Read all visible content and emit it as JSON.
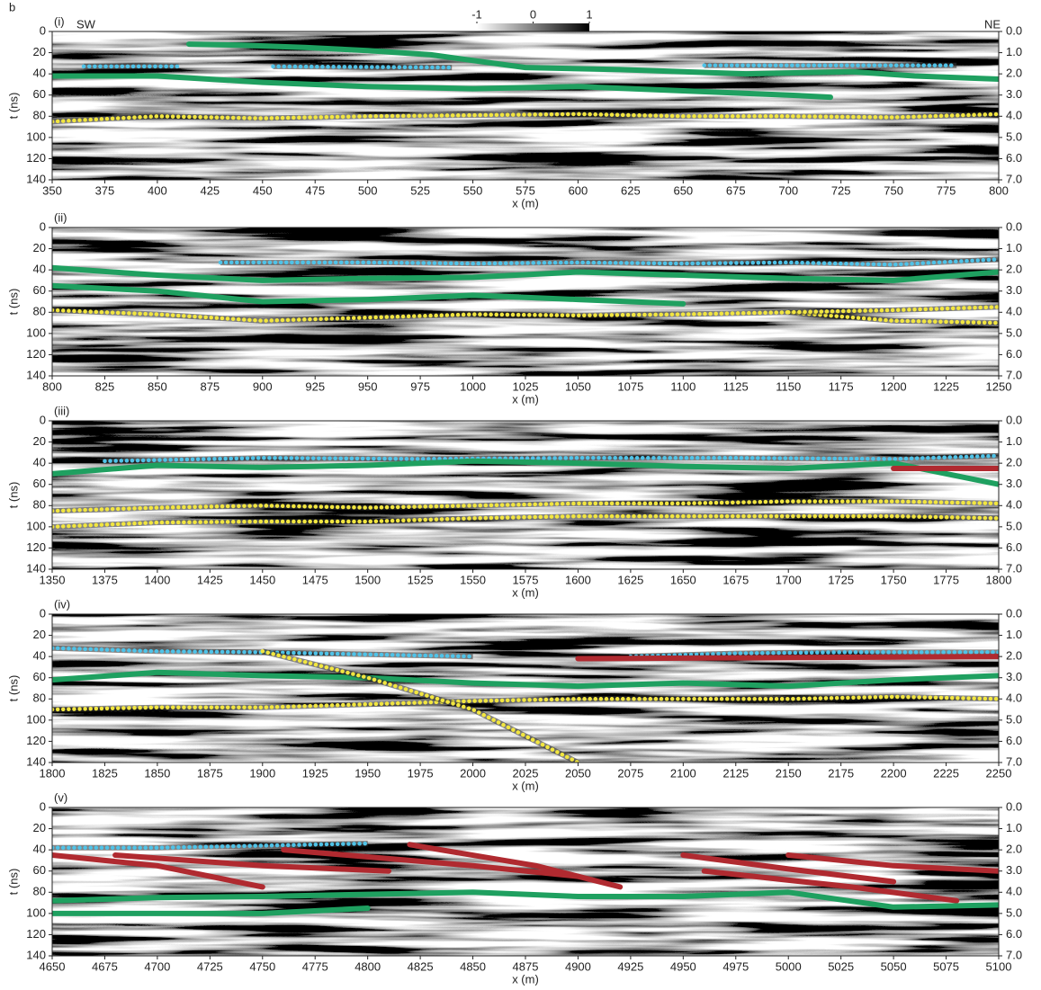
{
  "figure_label": "b",
  "colorbar": {
    "ticks": [
      -1,
      0,
      1
    ]
  },
  "direction_labels": [
    "SW",
    "NE"
  ],
  "chart_data": [
    {
      "type": "line",
      "title": "(i)",
      "x_label": "x (m)",
      "y_label": "t (ns)",
      "xlim": [
        350,
        800
      ],
      "xticks": [
        350,
        375,
        400,
        425,
        450,
        475,
        500,
        525,
        550,
        575,
        600,
        625,
        650,
        675,
        700,
        725,
        750,
        775,
        800
      ],
      "ylim": [
        140,
        0
      ],
      "yticks": [
        0,
        20,
        40,
        60,
        80,
        100,
        120,
        140
      ],
      "y2lim": [
        7,
        0
      ],
      "y2ticks": [
        {
          "value": 0,
          "label": "0.0"
        },
        {
          "value": 1,
          "label": "1.0"
        },
        {
          "value": 2,
          "label": "2.0"
        },
        {
          "value": 3,
          "label": "3.0"
        },
        {
          "value": 4,
          "label": "4.0"
        },
        {
          "value": 5,
          "label": "5.0"
        },
        {
          "value": 6,
          "label": "6.0"
        },
        {
          "value": 7,
          "label": "7.0"
        }
      ],
      "series": [
        {
          "color": "#1fa060",
          "style": "solid",
          "x": [
            415,
            440,
            470,
            500,
            530,
            575,
            620,
            680,
            730,
            760,
            800
          ],
          "values": [
            12,
            13,
            15,
            18,
            22,
            34,
            36,
            40,
            38,
            42,
            45
          ]
        },
        {
          "color": "#1fa060",
          "style": "solid",
          "x": [
            350,
            400,
            450,
            500,
            550,
            600,
            650,
            700,
            720
          ],
          "values": [
            42,
            42,
            48,
            52,
            54,
            52,
            56,
            60,
            62
          ]
        },
        {
          "color": "#4fc3e8",
          "style": "dotted",
          "x": [
            365,
            410,
            430,
            455,
            540,
            600,
            660,
            780
          ],
          "values": [
            33,
            33,
            null,
            33,
            34,
            null,
            32,
            32
          ]
        },
        {
          "color": "#f2e640",
          "style": "dotted",
          "x": [
            350,
            400,
            450,
            500,
            550,
            600,
            650,
            700,
            750,
            800
          ],
          "values": [
            85,
            80,
            82,
            80,
            79,
            78,
            80,
            80,
            81,
            78
          ]
        }
      ]
    },
    {
      "type": "line",
      "title": "(ii)",
      "x_label": "x (m)",
      "y_label": "t (ns)",
      "xlim": [
        800,
        1250
      ],
      "xticks": [
        800,
        825,
        850,
        875,
        900,
        925,
        950,
        975,
        1000,
        1025,
        1050,
        1075,
        1100,
        1125,
        1150,
        1175,
        1200,
        1225,
        1250
      ],
      "ylim": [
        140,
        0
      ],
      "yticks": [
        0,
        20,
        40,
        60,
        80,
        100,
        120,
        140
      ],
      "y2lim": [
        7,
        0
      ],
      "y2ticks": [
        {
          "value": 0,
          "label": "0.0"
        },
        {
          "value": 1,
          "label": "1.0"
        },
        {
          "value": 2,
          "label": "2.0"
        },
        {
          "value": 3,
          "label": "3.0"
        },
        {
          "value": 4,
          "label": "4.0"
        },
        {
          "value": 5,
          "label": "5.0"
        },
        {
          "value": 6,
          "label": "6.0"
        },
        {
          "value": 7,
          "label": "7.0"
        }
      ],
      "series": [
        {
          "color": "#4fc3e8",
          "style": "dotted",
          "x": [
            880,
            950,
            1000,
            1050,
            1100,
            1150,
            1200,
            1250
          ],
          "values": [
            33,
            33,
            34,
            33,
            34,
            33,
            35,
            30
          ]
        },
        {
          "color": "#1fa060",
          "style": "solid",
          "x": [
            800,
            850,
            900,
            950,
            1000,
            1050,
            1100,
            1150,
            1200,
            1250
          ],
          "values": [
            38,
            45,
            50,
            48,
            47,
            42,
            45,
            48,
            50,
            42
          ]
        },
        {
          "color": "#1fa060",
          "style": "solid",
          "x": [
            800,
            850,
            900,
            950,
            1000,
            1050,
            1100
          ],
          "values": [
            55,
            60,
            70,
            68,
            64,
            68,
            72
          ]
        },
        {
          "color": "#f2e640",
          "style": "dotted",
          "x": [
            800,
            850,
            900,
            950,
            1000,
            1050,
            1100,
            1150,
            1200,
            1250
          ],
          "values": [
            78,
            82,
            88,
            85,
            82,
            83,
            82,
            80,
            88,
            90
          ]
        },
        {
          "color": "#f2e640",
          "style": "dotted",
          "x": [
            1150,
            1200,
            1250
          ],
          "values": [
            80,
            78,
            75
          ]
        }
      ]
    },
    {
      "type": "line",
      "title": "(iii)",
      "x_label": "x (m)",
      "y_label": "t (ns)",
      "xlim": [
        1350,
        1800
      ],
      "xticks": [
        1350,
        1375,
        1400,
        1425,
        1450,
        1475,
        1500,
        1525,
        1550,
        1575,
        1600,
        1625,
        1650,
        1675,
        1700,
        1725,
        1750,
        1775,
        1800
      ],
      "ylim": [
        140,
        0
      ],
      "yticks": [
        0,
        20,
        40,
        60,
        80,
        100,
        120,
        140
      ],
      "y2lim": [
        7,
        0
      ],
      "y2ticks": [
        {
          "value": 0,
          "label": "0.0"
        },
        {
          "value": 1,
          "label": "1.0"
        },
        {
          "value": 2,
          "label": "2.0"
        },
        {
          "value": 3,
          "label": "3.0"
        },
        {
          "value": 4,
          "label": "4.0"
        },
        {
          "value": 5,
          "label": "5.0"
        },
        {
          "value": 6,
          "label": "6.0"
        },
        {
          "value": 7,
          "label": "7.0"
        }
      ],
      "series": [
        {
          "color": "#4fc3e8",
          "style": "dotted",
          "x": [
            1375,
            1450,
            1525,
            1600,
            1675,
            1750,
            1800
          ],
          "values": [
            38,
            35,
            36,
            35,
            35,
            36,
            33
          ]
        },
        {
          "color": "#1fa060",
          "style": "solid",
          "x": [
            1350,
            1400,
            1450,
            1500,
            1550,
            1600,
            1650,
            1700,
            1750,
            1800
          ],
          "values": [
            50,
            42,
            44,
            42,
            38,
            40,
            43,
            45,
            40,
            60
          ]
        },
        {
          "color": "#f2e640",
          "style": "dotted",
          "x": [
            1350,
            1400,
            1450,
            1500,
            1550,
            1600,
            1650,
            1700,
            1750,
            1800
          ],
          "values": [
            85,
            82,
            80,
            82,
            80,
            78,
            78,
            76,
            76,
            78
          ]
        },
        {
          "color": "#f2e640",
          "style": "dotted",
          "x": [
            1350,
            1400,
            1450,
            1500,
            1550,
            1600,
            1650,
            1700,
            1750,
            1800
          ],
          "values": [
            100,
            96,
            95,
            95,
            92,
            90,
            90,
            90,
            90,
            92
          ]
        },
        {
          "color": "#b02a30",
          "style": "solid",
          "x": [
            1750,
            1800
          ],
          "values": [
            45,
            45
          ]
        }
      ]
    },
    {
      "type": "line",
      "title": "(iv)",
      "x_label": "x (m)",
      "y_label": "t (ns)",
      "xlim": [
        1800,
        2250
      ],
      "xticks": [
        1800,
        1825,
        1850,
        1875,
        1900,
        1925,
        1950,
        1975,
        2000,
        2025,
        2050,
        2075,
        2100,
        2125,
        2150,
        2175,
        2200,
        2225,
        2250
      ],
      "ylim": [
        140,
        0
      ],
      "yticks": [
        0,
        20,
        40,
        60,
        80,
        100,
        120,
        140
      ],
      "y2lim": [
        7,
        0
      ],
      "y2ticks": [
        {
          "value": 0,
          "label": "0.0"
        },
        {
          "value": 1,
          "label": "1.0"
        },
        {
          "value": 2,
          "label": "2.0"
        },
        {
          "value": 3,
          "label": "3.0"
        },
        {
          "value": 4,
          "label": "4.0"
        },
        {
          "value": 5,
          "label": "5.0"
        },
        {
          "value": 6,
          "label": "6.0"
        },
        {
          "value": 7,
          "label": "7.0"
        }
      ],
      "series": [
        {
          "color": "#4fc3e8",
          "style": "dotted",
          "x": [
            1800,
            1850,
            1900,
            1950,
            2000,
            2025,
            2075,
            2125,
            2175,
            2225,
            2250
          ],
          "values": [
            32,
            35,
            36,
            38,
            40,
            null,
            40,
            37,
            36,
            36,
            36
          ]
        },
        {
          "color": "#1fa060",
          "style": "solid",
          "x": [
            1800,
            1850,
            1900,
            1950,
            2000,
            2050,
            2100,
            2150,
            2200,
            2250
          ],
          "values": [
            62,
            55,
            58,
            60,
            65,
            68,
            65,
            68,
            62,
            58
          ]
        },
        {
          "color": "#f2e640",
          "style": "dotted",
          "x": [
            1800,
            1850,
            1900,
            1950,
            2000,
            2050,
            2100,
            2150,
            2200,
            2250
          ],
          "values": [
            90,
            88,
            88,
            85,
            82,
            80,
            80,
            80,
            78,
            80
          ]
        },
        {
          "color": "#f2e640",
          "style": "dotted",
          "x": [
            1900,
            1950,
            2000,
            2050
          ],
          "values": [
            35,
            60,
            90,
            140
          ]
        },
        {
          "color": "#b02a30",
          "style": "solid",
          "x": [
            2050,
            2250
          ],
          "values": [
            42,
            40
          ]
        }
      ]
    },
    {
      "type": "line",
      "title": "(v)",
      "x_label": "x (m)",
      "y_label": "t (ns)",
      "xlim": [
        4650,
        5100
      ],
      "xticks": [
        4650,
        4675,
        4700,
        4725,
        4750,
        4775,
        4800,
        4825,
        4850,
        4875,
        4900,
        4925,
        4950,
        4975,
        5000,
        5025,
        5050,
        5075,
        5100
      ],
      "ylim": [
        140,
        0
      ],
      "yticks": [
        0,
        20,
        40,
        60,
        80,
        100,
        120,
        140
      ],
      "y2lim": [
        7,
        0
      ],
      "y2ticks": [
        {
          "value": 0,
          "label": "0.0"
        },
        {
          "value": 1,
          "label": "1.0"
        },
        {
          "value": 2,
          "label": "2.0"
        },
        {
          "value": 3,
          "label": "3.0"
        },
        {
          "value": 4,
          "label": "4.0"
        },
        {
          "value": 5,
          "label": "5.0"
        },
        {
          "value": 6,
          "label": "6.0"
        },
        {
          "value": 7,
          "label": "7.0"
        }
      ],
      "series": [
        {
          "color": "#4fc3e8",
          "style": "dotted",
          "x": [
            4650,
            4700,
            4750,
            4800
          ],
          "values": [
            38,
            38,
            36,
            34
          ]
        },
        {
          "color": "#b02a30",
          "style": "solid",
          "x": [
            4650,
            4700,
            4750
          ],
          "values": [
            45,
            55,
            75
          ]
        },
        {
          "color": "#b02a30",
          "style": "solid",
          "x": [
            4680,
            4750,
            4810
          ],
          "values": [
            45,
            55,
            60
          ]
        },
        {
          "color": "#b02a30",
          "style": "solid",
          "x": [
            4760,
            4850,
            4900
          ],
          "values": [
            40,
            55,
            65
          ]
        },
        {
          "color": "#b02a30",
          "style": "solid",
          "x": [
            4820,
            4880,
            4920
          ],
          "values": [
            35,
            55,
            75
          ]
        },
        {
          "color": "#b02a30",
          "style": "solid",
          "x": [
            4950,
            5000,
            5050
          ],
          "values": [
            45,
            58,
            70
          ]
        },
        {
          "color": "#b02a30",
          "style": "solid",
          "x": [
            5000,
            5050,
            5100
          ],
          "values": [
            45,
            55,
            60
          ]
        },
        {
          "color": "#b02a30",
          "style": "solid",
          "x": [
            4960,
            5030,
            5080
          ],
          "values": [
            60,
            75,
            88
          ]
        },
        {
          "color": "#1fa060",
          "style": "solid",
          "x": [
            4650,
            4700,
            4750,
            4800,
            4850,
            4900,
            4950,
            5000,
            5050,
            5100
          ],
          "values": [
            88,
            85,
            84,
            82,
            80,
            84,
            84,
            80,
            94,
            92
          ]
        },
        {
          "color": "#1fa060",
          "style": "solid",
          "x": [
            4650,
            4700,
            4750,
            4800
          ],
          "values": [
            100,
            100,
            100,
            95
          ]
        }
      ]
    }
  ]
}
